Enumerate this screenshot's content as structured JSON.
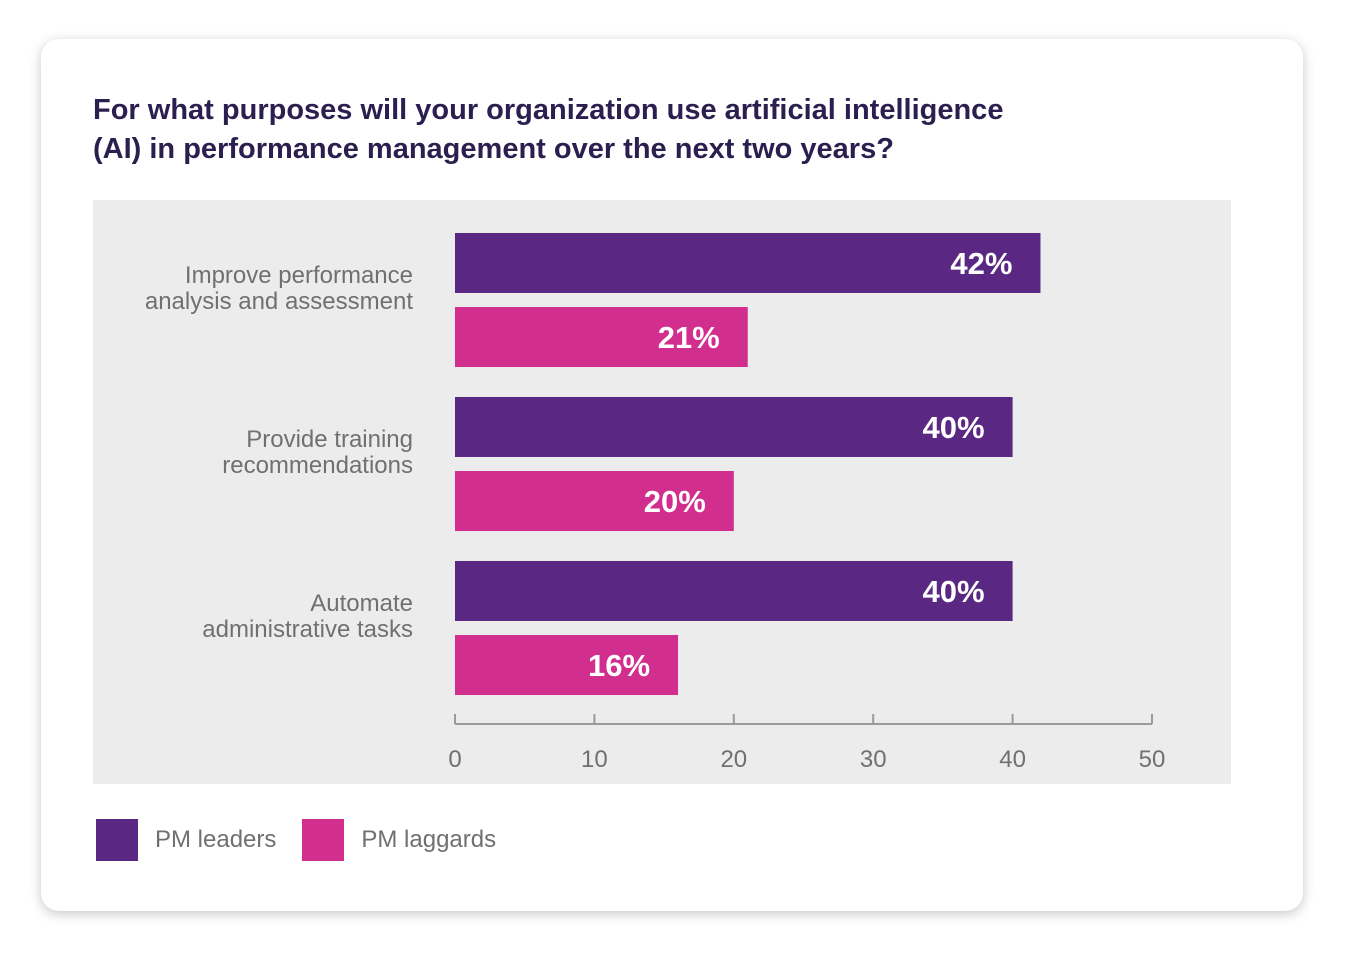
{
  "chart_data": {
    "type": "bar",
    "orientation": "horizontal",
    "title": "For what purposes will your organization use artificial intelligence (AI) in performance management over the next two years?",
    "title_lines": [
      "For what purposes will your organization use artificial intelligence",
      "(AI) in performance management over the next two years?"
    ],
    "categories": [
      [
        "Improve performance",
        "analysis and assessment"
      ],
      [
        "Provide training",
        "recommendations"
      ],
      [
        "Automate",
        "administrative tasks"
      ]
    ],
    "series": [
      {
        "name": "PM leaders",
        "color": "#5a2883",
        "values": [
          42,
          40,
          40
        ],
        "labels": [
          "42%",
          "40%",
          "40%"
        ]
      },
      {
        "name": "PM laggards",
        "color": "#d22e8e",
        "values": [
          21,
          20,
          16
        ],
        "labels": [
          "21%",
          "20%",
          "16%"
        ]
      }
    ],
    "xlim": [
      0,
      50
    ],
    "xticks": [
      0,
      10,
      20,
      30,
      40,
      50
    ],
    "xlabel": "",
    "ylabel": "",
    "legend_position": "bottom-left"
  },
  "colors": {
    "title": "#2a1f4f",
    "plot_background": "#ececec",
    "text_gray": "#707070"
  }
}
